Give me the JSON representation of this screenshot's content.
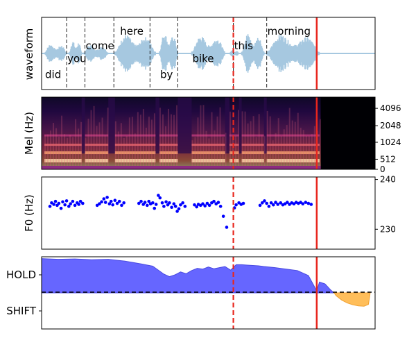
{
  "chart_data": [
    {
      "type": "area",
      "ylabel": "waveform",
      "xlim": [
        0,
        6
      ],
      "ylim": [
        -1,
        1
      ],
      "waveform_color": "#a6c8e0",
      "baseline": 0,
      "speech_segments": [
        {
          "start": 0.05,
          "end": 0.45,
          "amp": 0.4
        },
        {
          "start": 0.5,
          "end": 0.72,
          "amp": 0.55
        },
        {
          "start": 0.75,
          "end": 1.2,
          "amp": 0.35
        },
        {
          "start": 1.32,
          "end": 2.05,
          "amp": 0.8
        },
        {
          "start": 2.12,
          "end": 2.45,
          "amp": 0.9
        },
        {
          "start": 2.7,
          "end": 3.3,
          "amp": 0.75
        },
        {
          "start": 3.38,
          "end": 3.55,
          "amp": 0.15
        },
        {
          "start": 3.6,
          "end": 4.0,
          "amp": 0.85
        },
        {
          "start": 4.05,
          "end": 5.0,
          "amp": 0.8
        }
      ],
      "word_boundaries": [
        0.45,
        0.78,
        1.3,
        1.95,
        2.45,
        3.45,
        4.05
      ],
      "words": [
        {
          "text": "did",
          "x": 0.05,
          "y": -0.68
        },
        {
          "text": "you",
          "x": 0.45,
          "y": -0.24
        },
        {
          "text": "come",
          "x": 0.78,
          "y": 0.12
        },
        {
          "text": "here",
          "x": 1.4,
          "y": 0.52
        },
        {
          "text": "by",
          "x": 2.12,
          "y": -0.68
        },
        {
          "text": "bike",
          "x": 2.7,
          "y": -0.24
        },
        {
          "text": "this",
          "x": 3.45,
          "y": 0.12
        },
        {
          "text": "morning",
          "x": 4.05,
          "y": 0.52
        }
      ],
      "colors": {
        "boundary": "#333333",
        "dashed_red": "#e8261e",
        "solid_red": "#e8261e"
      },
      "dashed_red_x": 3.45,
      "solid_red_x": 4.95
    },
    {
      "type": "heatmap",
      "ylabel": "Mel (Hz)",
      "yticks_right": [
        "4096",
        "2048",
        "1024",
        "512",
        "0"
      ],
      "xlim": [
        0,
        6
      ],
      "speech_end": 5.02,
      "dashed_red_x": 3.45,
      "solid_red_x": 4.95
    },
    {
      "type": "scatter",
      "ylabel": "F0 (Hz)",
      "xlim": [
        0,
        6
      ],
      "ylim": [
        226,
        240.5
      ],
      "yticks": [
        230,
        240
      ],
      "point_color": "#0000ff",
      "points": [
        [
          0.15,
          234.6
        ],
        [
          0.18,
          235.3
        ],
        [
          0.22,
          235.0
        ],
        [
          0.25,
          235.6
        ],
        [
          0.28,
          234.8
        ],
        [
          0.31,
          235.2
        ],
        [
          0.35,
          234.2
        ],
        [
          0.38,
          235.5
        ],
        [
          0.42,
          234.9
        ],
        [
          0.45,
          235.7
        ],
        [
          0.49,
          234.6
        ],
        [
          0.52,
          235.1
        ],
        [
          0.56,
          235.6
        ],
        [
          0.6,
          234.8
        ],
        [
          0.64,
          235.3
        ],
        [
          0.67,
          235.0
        ],
        [
          0.7,
          235.6
        ],
        [
          0.74,
          235.2
        ],
        [
          1.0,
          234.8
        ],
        [
          1.04,
          235.1
        ],
        [
          1.08,
          235.5
        ],
        [
          1.12,
          236.1
        ],
        [
          1.15,
          235.4
        ],
        [
          1.18,
          236.4
        ],
        [
          1.22,
          235.1
        ],
        [
          1.25,
          235.6
        ],
        [
          1.28,
          234.9
        ],
        [
          1.32,
          235.8
        ],
        [
          1.36,
          235.2
        ],
        [
          1.4,
          235.6
        ],
        [
          1.44,
          234.8
        ],
        [
          1.48,
          235.3
        ],
        [
          1.75,
          235.2
        ],
        [
          1.79,
          235.6
        ],
        [
          1.83,
          235.0
        ],
        [
          1.86,
          235.4
        ],
        [
          1.9,
          234.8
        ],
        [
          1.93,
          235.6
        ],
        [
          1.96,
          235.1
        ],
        [
          2.0,
          235.3
        ],
        [
          2.03,
          234.2
        ],
        [
          2.06,
          235.0
        ],
        [
          2.1,
          236.8
        ],
        [
          2.13,
          236.3
        ],
        [
          2.17,
          235.3
        ],
        [
          2.2,
          234.6
        ],
        [
          2.24,
          235.5
        ],
        [
          2.27,
          234.9
        ],
        [
          2.3,
          235.3
        ],
        [
          2.34,
          234.4
        ],
        [
          2.38,
          235.1
        ],
        [
          2.41,
          234.6
        ],
        [
          2.44,
          233.6
        ],
        [
          2.47,
          234.1
        ],
        [
          2.5,
          234.9
        ],
        [
          2.54,
          235.3
        ],
        [
          2.58,
          234.6
        ],
        [
          2.75,
          234.9
        ],
        [
          2.79,
          234.5
        ],
        [
          2.82,
          235.0
        ],
        [
          2.86,
          234.8
        ],
        [
          2.9,
          235.1
        ],
        [
          2.94,
          234.7
        ],
        [
          2.98,
          235.2
        ],
        [
          3.02,
          234.8
        ],
        [
          3.06,
          235.3
        ],
        [
          3.1,
          235.6
        ],
        [
          3.14,
          235.1
        ],
        [
          3.18,
          235.4
        ],
        [
          3.22,
          234.6
        ],
        [
          3.27,
          232.6
        ],
        [
          3.33,
          230.4
        ],
        [
          3.47,
          234.3
        ],
        [
          3.5,
          234.9
        ],
        [
          3.55,
          235.3
        ],
        [
          3.59,
          235.0
        ],
        [
          3.63,
          235.2
        ],
        [
          3.93,
          234.8
        ],
        [
          3.97,
          235.3
        ],
        [
          4.01,
          235.7
        ],
        [
          4.05,
          235.2
        ],
        [
          4.09,
          234.6
        ],
        [
          4.13,
          235.3
        ],
        [
          4.17,
          234.9
        ],
        [
          4.21,
          235.4
        ],
        [
          4.25,
          235.0
        ],
        [
          4.3,
          235.3
        ],
        [
          4.34,
          234.9
        ],
        [
          4.38,
          235.1
        ],
        [
          4.42,
          235.4
        ],
        [
          4.46,
          235.0
        ],
        [
          4.5,
          235.3
        ],
        [
          4.54,
          235.1
        ],
        [
          4.58,
          235.4
        ],
        [
          4.62,
          235.2
        ],
        [
          4.66,
          235.4
        ],
        [
          4.7,
          235.1
        ],
        [
          4.75,
          235.4
        ],
        [
          4.8,
          235.2
        ],
        [
          4.85,
          235.0
        ]
      ],
      "dashed_red_x": 3.45,
      "solid_red_x": 4.95
    },
    {
      "type": "area",
      "ytick_labels": [
        "HOLD",
        "SHIFT"
      ],
      "ytick_values": [
        0.5,
        -0.5
      ],
      "xlim": [
        0,
        6
      ],
      "ylim": [
        -1,
        1
      ],
      "threshold": 0,
      "hold_color": "#6666ff",
      "shift_color": "#ffbe5a",
      "hold_series": [
        [
          0.0,
          0.95
        ],
        [
          0.3,
          0.93
        ],
        [
          0.6,
          0.94
        ],
        [
          0.9,
          0.92
        ],
        [
          1.2,
          0.93
        ],
        [
          1.5,
          0.88
        ],
        [
          1.8,
          0.8
        ],
        [
          2.0,
          0.74
        ],
        [
          2.2,
          0.52
        ],
        [
          2.3,
          0.45
        ],
        [
          2.4,
          0.5
        ],
        [
          2.5,
          0.58
        ],
        [
          2.6,
          0.53
        ],
        [
          2.7,
          0.62
        ],
        [
          2.8,
          0.68
        ],
        [
          2.9,
          0.66
        ],
        [
          3.0,
          0.72
        ],
        [
          3.1,
          0.67
        ],
        [
          3.2,
          0.7
        ],
        [
          3.3,
          0.73
        ],
        [
          3.4,
          0.63
        ],
        [
          3.5,
          0.78
        ],
        [
          3.6,
          0.78
        ],
        [
          3.7,
          0.77
        ],
        [
          3.8,
          0.76
        ],
        [
          3.9,
          0.75
        ],
        [
          4.0,
          0.73
        ],
        [
          4.2,
          0.7
        ],
        [
          4.4,
          0.66
        ],
        [
          4.6,
          0.62
        ],
        [
          4.8,
          0.48
        ],
        [
          4.9,
          0.2
        ],
        [
          4.95,
          0.05
        ],
        [
          5.0,
          0.3
        ],
        [
          5.1,
          0.25
        ],
        [
          5.2,
          0.08
        ],
        [
          5.26,
          0.0
        ]
      ],
      "shift_series": [
        [
          5.26,
          0.0
        ],
        [
          5.3,
          -0.08
        ],
        [
          5.4,
          -0.2
        ],
        [
          5.5,
          -0.28
        ],
        [
          5.6,
          -0.33
        ],
        [
          5.7,
          -0.36
        ],
        [
          5.8,
          -0.37
        ],
        [
          5.88,
          -0.32
        ],
        [
          5.91,
          -0.02
        ],
        [
          5.91,
          0.0
        ]
      ],
      "dashed_red_x": 3.45,
      "solid_red_x": 4.95
    }
  ]
}
